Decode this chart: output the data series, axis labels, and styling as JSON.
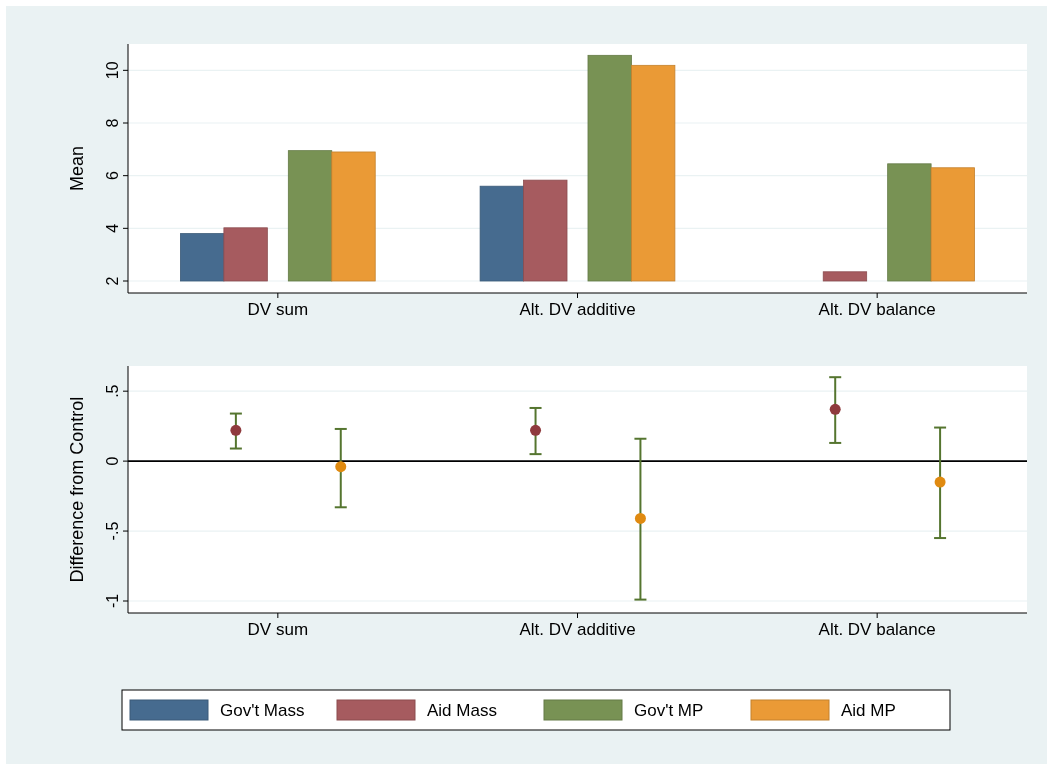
{
  "chart_data": [
    {
      "type": "bar",
      "ylabel": "Mean",
      "categories": [
        "DV sum",
        "Alt. DV additive",
        "Alt. DV balance"
      ],
      "ylim": [
        2,
        11
      ],
      "yticks": [
        2,
        4,
        6,
        8,
        10
      ],
      "grid": "y",
      "legend": "bottom",
      "series": [
        {
          "name": "Gov't Mass",
          "color": "#466b8f",
          "values": [
            3.8,
            5.6,
            null
          ]
        },
        {
          "name": "Aid Mass",
          "color": "#a65b5f",
          "values": [
            4.02,
            5.83,
            2.35
          ]
        },
        {
          "name": "Gov't MP",
          "color": "#789254",
          "values": [
            6.95,
            10.57,
            6.45
          ]
        },
        {
          "name": "Aid MP",
          "color": "#ea9a36",
          "values": [
            6.9,
            10.19,
            6.3
          ]
        }
      ]
    },
    {
      "type": "scatter",
      "ylabel": "Difference from Control",
      "categories": [
        "DV sum",
        "Alt. DV additive",
        "Alt. DV balance"
      ],
      "ylim": [
        -1,
        0.68
      ],
      "yticks": [
        {
          "value": 0.5,
          "label": ".5"
        },
        0,
        {
          "value": -0.5,
          "label": "-.5"
        },
        -1
      ],
      "grid": "y",
      "marker": "circle",
      "ref_lines": [
        {
          "axis": "y",
          "value": 0,
          "color": "#000000"
        }
      ],
      "series": [
        {
          "color": "#8f3a3d",
          "values": [
            0.22,
            0.22,
            0.37
          ],
          "errors": [
            [
              0.09,
              0.34
            ],
            [
              0.05,
              0.38
            ],
            [
              0.13,
              0.6
            ]
          ]
        },
        {
          "color": "#e08a10",
          "values": [
            -0.04,
            -0.41,
            -0.15
          ],
          "errors": [
            [
              -0.33,
              0.23
            ],
            [
              -0.99,
              0.16
            ],
            [
              -0.55,
              0.24
            ]
          ]
        }
      ]
    }
  ]
}
